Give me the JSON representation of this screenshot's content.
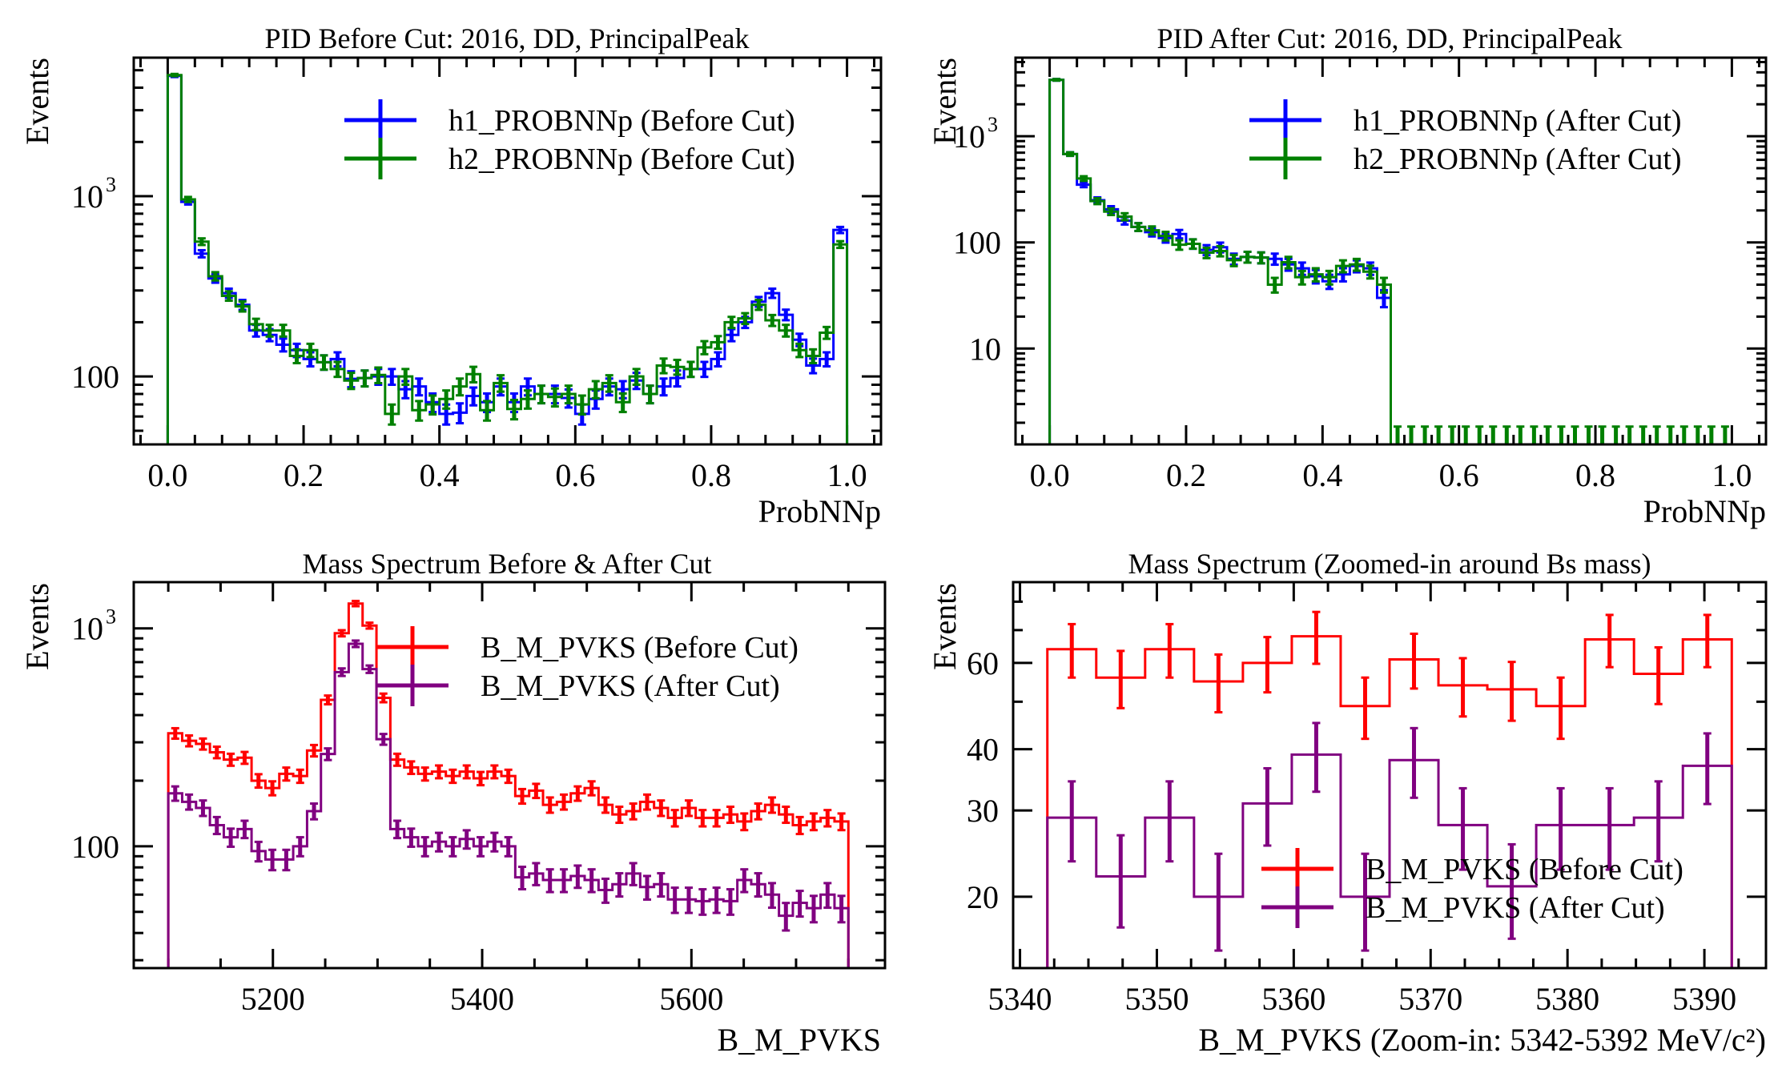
{
  "figure": {
    "background": "#ffffff"
  },
  "chart_data": [
    {
      "id": "pid-before",
      "type": "histogram",
      "title": "PID Before Cut: 2016, DD, PrincipalPeak",
      "xlabel": "ProbNNp",
      "ylabel": "Events",
      "xlim": [
        -0.05,
        1.05
      ],
      "ylim": [
        42,
        5870
      ],
      "yscale": "log",
      "xticks": [
        0.0,
        0.2,
        0.4,
        0.6,
        0.8,
        1.0
      ],
      "xtick_labels": [
        "0.0",
        "0.2",
        "0.4",
        "0.6",
        "0.8",
        "1.0"
      ],
      "yticks": [
        100,
        1000
      ],
      "ytick_labels": [
        "100",
        "10^3"
      ],
      "bin_edges_range": [
        0.0,
        1.0
      ],
      "legend_position": "top-right",
      "series": [
        {
          "name": "h1_PROBNNp (Before Cut)",
          "color": "#0000ff",
          "values": [
            4650,
            930,
            480,
            350,
            290,
            250,
            180,
            170,
            150,
            140,
            125,
            120,
            125,
            97,
            98,
            100,
            100,
            85,
            88,
            72,
            62,
            63,
            78,
            72,
            88,
            72,
            88,
            80,
            80,
            76,
            62,
            75,
            88,
            85,
            95,
            80,
            88,
            98,
            110,
            110,
            125,
            170,
            200,
            260,
            290,
            220,
            160,
            115,
            125,
            650
          ]
        },
        {
          "name": "h2_PROBNNp (Before Cut)",
          "color": "#008000",
          "values": [
            4700,
            960,
            560,
            360,
            280,
            245,
            195,
            180,
            180,
            130,
            140,
            120,
            110,
            95,
            98,
            102,
            62,
            100,
            65,
            70,
            75,
            88,
            103,
            65,
            92,
            66,
            75,
            80,
            77,
            80,
            70,
            85,
            92,
            72,
            100,
            80,
            115,
            113,
            110,
            145,
            155,
            200,
            210,
            250,
            205,
            180,
            140,
            130,
            175,
            540
          ]
        }
      ]
    },
    {
      "id": "pid-after",
      "type": "histogram",
      "title": "PID After Cut: 2016, DD, PrincipalPeak",
      "xlabel": "ProbNNp",
      "ylabel": "Events",
      "xlim": [
        -0.05,
        1.05
      ],
      "ylim": [
        1.25,
        5500
      ],
      "yscale": "log",
      "xticks": [
        0.0,
        0.2,
        0.4,
        0.6,
        0.8,
        1.0
      ],
      "xtick_labels": [
        "0.0",
        "0.2",
        "0.4",
        "0.6",
        "0.8",
        "1.0"
      ],
      "yticks": [
        10,
        100,
        1000
      ],
      "ytick_labels": [
        "10",
        "100",
        "10^3"
      ],
      "bin_edges_range": [
        0.0,
        1.0
      ],
      "legend_position": "top-right",
      "zero_bin_error": 1.84,
      "series": [
        {
          "name": "h1_PROBNNp (After Cut)",
          "color": "#0000ff",
          "values": [
            3400,
            680,
            350,
            250,
            205,
            160,
            140,
            125,
            110,
            120,
            97,
            85,
            90,
            70,
            73,
            72,
            70,
            62,
            57,
            48,
            43,
            50,
            60,
            57,
            30,
            0,
            0,
            0,
            0,
            0,
            0,
            0,
            0,
            0,
            0,
            0,
            0,
            0,
            0,
            0,
            0,
            0,
            0,
            0,
            0,
            0,
            0,
            0,
            0,
            0
          ]
        },
        {
          "name": "h2_PROBNNp (After Cut)",
          "color": "#008000",
          "values": [
            3400,
            680,
            400,
            245,
            195,
            175,
            140,
            130,
            115,
            95,
            97,
            80,
            83,
            68,
            73,
            72,
            40,
            65,
            47,
            50,
            47,
            60,
            62,
            53,
            40,
            0,
            0,
            0,
            0,
            0,
            0,
            0,
            0,
            0,
            0,
            0,
            0,
            0,
            0,
            0,
            0,
            0,
            0,
            0,
            0,
            0,
            0,
            0,
            0,
            0
          ]
        }
      ]
    },
    {
      "id": "mass-full",
      "type": "histogram",
      "title": "Mass Spectrum Before & After Cut",
      "xlabel": "B_M_PVKS",
      "ylabel": "Events",
      "xlim": [
        5067,
        5785
      ],
      "ylim": [
        27.6,
        1630
      ],
      "yscale": "log",
      "xticks": [
        5200,
        5400,
        5600
      ],
      "xtick_labels": [
        "5200",
        "5400",
        "5600"
      ],
      "yticks": [
        100,
        1000
      ],
      "ytick_labels": [
        "100",
        "10^3"
      ],
      "bin_edges_range": [
        5100,
        5750
      ],
      "legend_position": "top-right",
      "series": [
        {
          "name": "B_M_PVKS (Before Cut)",
          "color": "#ff0000",
          "values": [
            330,
            305,
            295,
            270,
            250,
            255,
            200,
            185,
            215,
            210,
            275,
            470,
            950,
            1300,
            1030,
            480,
            250,
            230,
            215,
            220,
            210,
            220,
            205,
            220,
            210,
            170,
            180,
            155,
            160,
            175,
            185,
            155,
            140,
            145,
            160,
            150,
            135,
            150,
            135,
            135,
            140,
            130,
            145,
            155,
            140,
            125,
            130,
            135,
            130
          ]
        },
        {
          "name": "B_M_PVKS (After Cut)",
          "color": "#800080",
          "values": [
            175,
            160,
            150,
            125,
            110,
            120,
            95,
            87,
            87,
            100,
            145,
            265,
            630,
            850,
            650,
            310,
            120,
            110,
            100,
            105,
            100,
            108,
            100,
            105,
            100,
            72,
            75,
            70,
            70,
            73,
            70,
            63,
            67,
            75,
            65,
            67,
            57,
            57,
            56,
            57,
            56,
            70,
            67,
            60,
            48,
            55,
            52,
            60,
            52
          ]
        }
      ]
    },
    {
      "id": "mass-zoom",
      "type": "histogram",
      "title": "Mass Spectrum (Zoomed-in around Bs mass)",
      "xlabel": "B_M_PVKS (Zoom-in: 5342-5392 MeV/c²)",
      "ylabel": "Events",
      "xlim": [
        5339.5,
        5394.5
      ],
      "ylim": [
        14.3,
        87.7
      ],
      "yscale": "log",
      "xticks": [
        5340,
        5350,
        5360,
        5370,
        5380,
        5390
      ],
      "xtick_labels": [
        "5340",
        "5350",
        "5360",
        "5370",
        "5380",
        "5390"
      ],
      "yticks": [
        20,
        30,
        40,
        60
      ],
      "ytick_labels": [
        "20",
        "30",
        "40",
        "60"
      ],
      "bin_edges_range": [
        5342,
        5392
      ],
      "legend_position": "lower-center",
      "series": [
        {
          "name": "B_M_PVKS (Before Cut)",
          "color": "#ff0000",
          "values": [
            64,
            56,
            64,
            55,
            60,
            68,
            49,
            61,
            54,
            53,
            49,
            67,
            57,
            67
          ]
        },
        {
          "name": "B_M_PVKS (After Cut)",
          "color": "#800080",
          "values": [
            29,
            22,
            29,
            20,
            31,
            39,
            20,
            38,
            28,
            21,
            28,
            28,
            29,
            37
          ]
        }
      ]
    }
  ]
}
